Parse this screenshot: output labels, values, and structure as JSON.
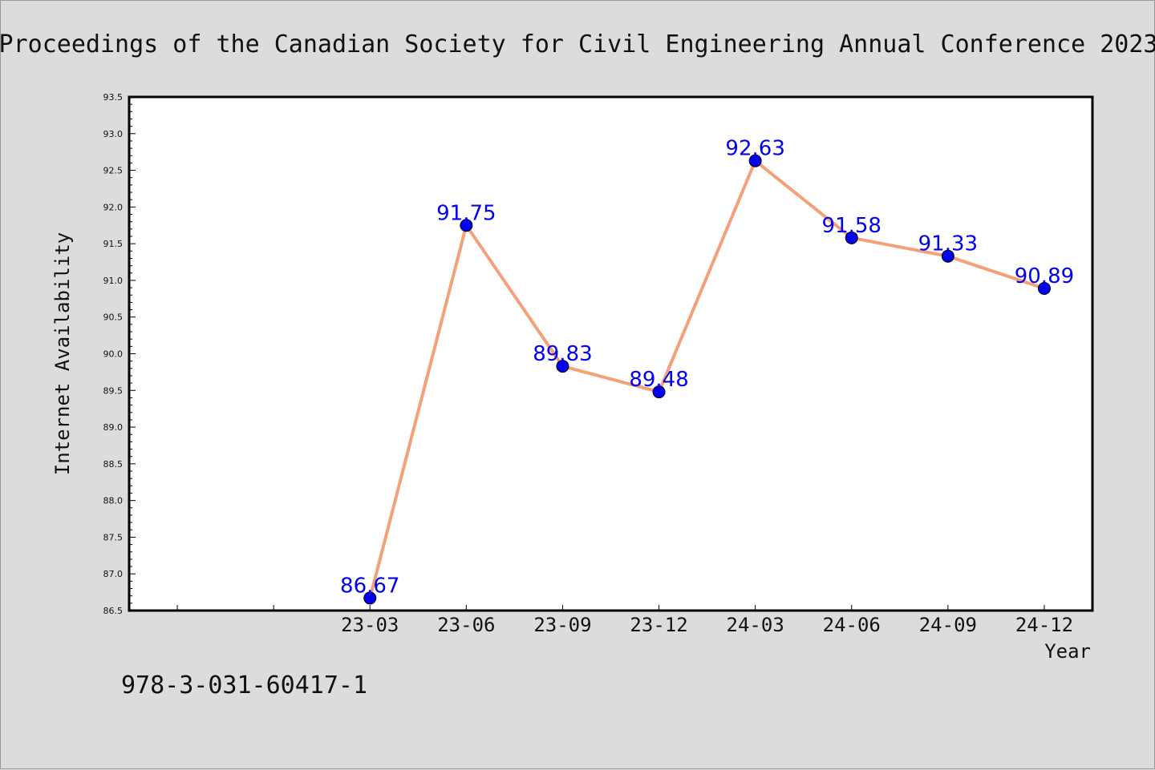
{
  "page": {
    "title": "Proceedings of the Canadian Society for Civil Engineering Annual Conference 2023",
    "footer_text": "978-3-031-60417-1"
  },
  "colors": {
    "background": "#dcdcdc",
    "plot_background": "#ffffff",
    "line": "#f4a07a",
    "marker": "#0000ee",
    "data_label": "#0000ee"
  },
  "chart_data": {
    "type": "line",
    "xlabel": "Year",
    "ylabel": "Internet Availability",
    "ylim": [
      86.5,
      93.5
    ],
    "y_ticks": [
      "86.5",
      "87.0",
      "87.5",
      "88.0",
      "88.5",
      "89.0",
      "89.5",
      "90.0",
      "90.5",
      "91.0",
      "91.5",
      "92.0",
      "92.5",
      "93.0",
      "93.5"
    ],
    "x_ticks": [
      "",
      "",
      "23-03",
      "23-06",
      "23-09",
      "23-12",
      "24-03",
      "24-06",
      "24-09",
      "24-12"
    ],
    "x_range": [
      -0.5,
      9.5
    ],
    "categories": [
      "23-03",
      "23-06",
      "23-09",
      "23-12",
      "24-03",
      "24-06",
      "24-09",
      "24-12"
    ],
    "category_index": [
      2,
      3,
      4,
      5,
      6,
      7,
      8,
      9
    ],
    "values": [
      86.67,
      91.75,
      89.83,
      89.48,
      92.63,
      91.58,
      91.33,
      90.89
    ],
    "data_labels": [
      "86.67",
      "91.75",
      "89.83",
      "89.48",
      "92.63",
      "91.58",
      "91.33",
      "90.89"
    ],
    "grid": false,
    "legend": "none",
    "marker": "circle"
  }
}
